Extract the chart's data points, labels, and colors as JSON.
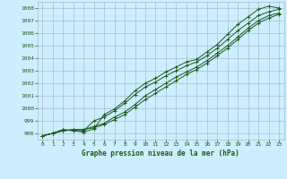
{
  "title": "Graphe pression niveau de la mer (hPa)",
  "bg_color": "#cceeff",
  "grid_color": "#aabbcc",
  "line_color": "#1a5c1a",
  "xlim": [
    -0.5,
    23.5
  ],
  "ylim": [
    997.5,
    1008.5
  ],
  "yticks": [
    998,
    999,
    1000,
    1001,
    1002,
    1003,
    1004,
    1005,
    1006,
    1007,
    1008
  ],
  "xticks": [
    0,
    1,
    2,
    3,
    4,
    5,
    6,
    7,
    8,
    9,
    10,
    11,
    12,
    13,
    14,
    15,
    16,
    17,
    18,
    19,
    20,
    21,
    22,
    23
  ],
  "series": [
    [
      997.8,
      998.0,
      998.2,
      998.3,
      998.3,
      998.55,
      998.8,
      999.3,
      999.7,
      1000.3,
      1001.0,
      1001.5,
      1002.0,
      1002.5,
      1002.9,
      1003.3,
      1003.8,
      1004.4,
      1005.0,
      1005.7,
      1006.4,
      1007.0,
      1007.4,
      1007.6
    ],
    [
      997.8,
      998.0,
      998.2,
      998.3,
      998.3,
      998.45,
      998.7,
      999.1,
      999.5,
      1000.1,
      1000.7,
      1001.2,
      1001.7,
      1002.2,
      1002.7,
      1003.1,
      1003.6,
      1004.2,
      1004.8,
      1005.5,
      1006.2,
      1006.8,
      1007.2,
      1007.5
    ],
    [
      997.8,
      998.0,
      998.3,
      998.25,
      998.2,
      999.0,
      999.3,
      999.8,
      1000.4,
      1001.1,
      1001.7,
      1002.1,
      1002.6,
      1003.0,
      1003.4,
      1003.7,
      1004.2,
      1004.8,
      1005.5,
      1006.2,
      1006.8,
      1007.4,
      1007.7,
      1007.9
    ],
    [
      997.8,
      998.0,
      998.3,
      998.2,
      998.1,
      998.35,
      999.5,
      999.95,
      1000.6,
      1001.4,
      1002.0,
      1002.4,
      1002.9,
      1003.3,
      1003.7,
      1003.9,
      1004.5,
      1005.1,
      1005.9,
      1006.7,
      1007.3,
      1007.9,
      1008.15,
      1008.0
    ]
  ]
}
